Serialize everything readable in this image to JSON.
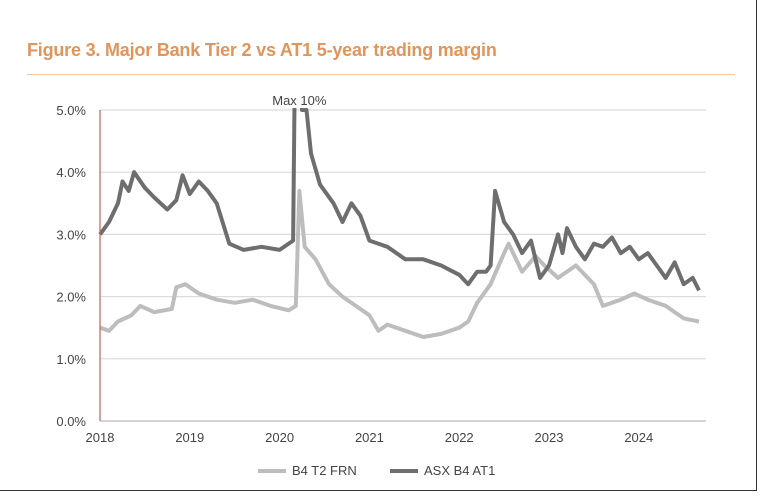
{
  "chart_data": {
    "type": "line",
    "title": "Figure 3. Major Bank Tier 2 vs AT1 5-year trading margin",
    "xlabel": "",
    "ylabel": "",
    "xlim": [
      2018,
      2024.72
    ],
    "ylim": [
      0,
      5
    ],
    "x_ticks": [
      "2018",
      "2019",
      "2020",
      "2021",
      "2022",
      "2023",
      "2024"
    ],
    "y_ticks": [
      "0.0%",
      "1.0%",
      "2.0%",
      "3.0%",
      "4.0%",
      "5.0%"
    ],
    "grid": true,
    "legend_position": "bottom",
    "annotation": "Max 10%",
    "series": [
      {
        "name": "B4 T2 FRN",
        "color": "#bdbdbd",
        "x": [
          2018.0,
          2018.1,
          2018.2,
          2018.35,
          2018.45,
          2018.6,
          2018.8,
          2018.85,
          2018.95,
          2019.1,
          2019.3,
          2019.5,
          2019.7,
          2019.9,
          2020.1,
          2020.18,
          2020.22,
          2020.28,
          2020.4,
          2020.55,
          2020.7,
          2020.9,
          2021.0,
          2021.1,
          2021.2,
          2021.4,
          2021.6,
          2021.8,
          2022.0,
          2022.1,
          2022.2,
          2022.35,
          2022.5,
          2022.55,
          2022.7,
          2022.85,
          2022.95,
          2023.1,
          2023.3,
          2023.5,
          2023.6,
          2023.8,
          2023.95,
          2024.1,
          2024.3,
          2024.5,
          2024.67
        ],
        "values": [
          1.5,
          1.45,
          1.6,
          1.7,
          1.85,
          1.75,
          1.8,
          2.15,
          2.2,
          2.05,
          1.95,
          1.9,
          1.95,
          1.85,
          1.78,
          1.85,
          3.7,
          2.8,
          2.6,
          2.2,
          2.0,
          1.8,
          1.7,
          1.45,
          1.55,
          1.45,
          1.35,
          1.4,
          1.5,
          1.6,
          1.9,
          2.2,
          2.7,
          2.85,
          2.4,
          2.65,
          2.5,
          2.3,
          2.5,
          2.2,
          1.85,
          1.95,
          2.05,
          1.95,
          1.85,
          1.65,
          1.6
        ]
      },
      {
        "name": "ASX B4 AT1",
        "color": "#6e6e6e",
        "x": [
          2018.0,
          2018.1,
          2018.2,
          2018.25,
          2018.32,
          2018.38,
          2018.5,
          2018.6,
          2018.75,
          2018.85,
          2018.92,
          2019.0,
          2019.1,
          2019.2,
          2019.3,
          2019.44,
          2019.6,
          2019.8,
          2020.0,
          2020.15,
          2020.2,
          2020.25,
          2020.3,
          2020.35,
          2020.45,
          2020.6,
          2020.7,
          2020.8,
          2020.9,
          2021.0,
          2021.2,
          2021.4,
          2021.6,
          2021.8,
          2022.0,
          2022.1,
          2022.2,
          2022.3,
          2022.35,
          2022.4,
          2022.5,
          2022.6,
          2022.7,
          2022.8,
          2022.9,
          2023.0,
          2023.1,
          2023.15,
          2023.2,
          2023.3,
          2023.4,
          2023.5,
          2023.6,
          2023.7,
          2023.8,
          2023.9,
          2024.0,
          2024.1,
          2024.2,
          2024.3,
          2024.4,
          2024.5,
          2024.6,
          2024.67
        ],
        "values": [
          3.0,
          3.2,
          3.5,
          3.85,
          3.7,
          4.0,
          3.75,
          3.6,
          3.4,
          3.55,
          3.95,
          3.65,
          3.85,
          3.7,
          3.5,
          2.85,
          2.75,
          2.8,
          2.75,
          2.9,
          10,
          5.0,
          5.0,
          4.3,
          3.8,
          3.5,
          3.2,
          3.5,
          3.3,
          2.9,
          2.8,
          2.6,
          2.6,
          2.5,
          2.35,
          2.2,
          2.4,
          2.4,
          2.5,
          3.7,
          3.2,
          3.0,
          2.7,
          2.9,
          2.3,
          2.5,
          3.0,
          2.7,
          3.1,
          2.8,
          2.6,
          2.85,
          2.8,
          2.95,
          2.7,
          2.8,
          2.6,
          2.7,
          2.5,
          2.3,
          2.55,
          2.2,
          2.3,
          2.1
        ]
      }
    ]
  }
}
